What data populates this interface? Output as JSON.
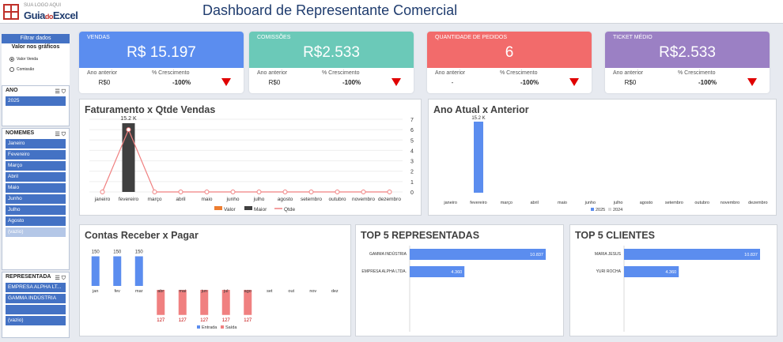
{
  "header": {
    "logo_small": "SUA LOGO AQUI",
    "logo_main": "Guia",
    "logo_do": "do",
    "logo_excel": "Excel",
    "title": "Dashboard de Representante Comercial"
  },
  "sidebar": {
    "filtrar": "Filtrar dados",
    "valor_nos_graficos": "Valor nos gráficos",
    "radio_valor": "Valor Venda",
    "radio_comissao": "Comissão",
    "ano": {
      "title": "ANO",
      "items": [
        "2025"
      ]
    },
    "nomemes": {
      "title": "NOMEMES",
      "items": [
        "Janeiro",
        "Fevereiro",
        "Março",
        "Abril",
        "Maio",
        "Junho",
        "Julho",
        "Agosto"
      ],
      "empty": "(vazio)"
    },
    "representada": {
      "title": "REPRESENTADA",
      "items": [
        "EMPRESA ALPHA LT...",
        "GAMMA INDÚSTRIA"
      ],
      "empty": "(vazio)"
    }
  },
  "kpis": [
    {
      "label": "VENDAS",
      "value": "R$ 15.197",
      "prev_label": "Ano anterior",
      "prev_value": "R$0",
      "growth_label": "% Crescimento",
      "growth_value": "-100%",
      "color": "#5b8def"
    },
    {
      "label": "COMISSÕES",
      "value": "R$2.533",
      "prev_label": "Ano anterior",
      "prev_value": "R$0",
      "growth_label": "% Crescimento",
      "growth_value": "-100%",
      "color": "#6bc9b8"
    },
    {
      "label": "QUANTIDADE DE PEDIDOS",
      "value": "6",
      "prev_label": "Ano anterior",
      "prev_value": "-",
      "growth_label": "% Crescimento",
      "growth_value": "-100%",
      "color": "#f26b6b"
    },
    {
      "label": "TICKET MÉDIO",
      "value": "R$2.533",
      "prev_label": "Ano anterior",
      "prev_value": "R$0",
      "growth_label": "% Crescimento",
      "growth_value": "-100%",
      "color": "#9b80c4"
    }
  ],
  "charts": {
    "faturamento_title": "Faturamento x Qtde Vendas",
    "ano_title": "Ano Atual x Anterior",
    "contas_title": "Contas Receber x Pagar",
    "top5r_title": "TOP 5 REPRESENTADAS",
    "top5c_title": "TOP 5 CLIENTES"
  },
  "chart_data": [
    {
      "type": "bar",
      "id": "faturamento",
      "categories": [
        "janeiro",
        "fevereiro",
        "março",
        "abril",
        "maio",
        "junho",
        "julho",
        "agosto",
        "setembro",
        "outubro",
        "novembro",
        "dezembro"
      ],
      "series": [
        {
          "name": "Maior",
          "values": [
            0,
            15197,
            0,
            0,
            0,
            0,
            0,
            0,
            0,
            0,
            0,
            0
          ],
          "color": "#404040"
        },
        {
          "name": "Qtde",
          "type": "line",
          "values": [
            0,
            6,
            0,
            0,
            0,
            0,
            0,
            0,
            0,
            0,
            0,
            0
          ],
          "color": "#f08080",
          "axis": "secondary"
        }
      ],
      "legend": [
        "Valor",
        "Maior",
        "Qtde"
      ],
      "data_label": "15.2 K",
      "y2_ticks": [
        "0",
        "1",
        "2",
        "3",
        "4",
        "5",
        "6",
        "7"
      ],
      "legend_position": "bottom"
    },
    {
      "type": "bar",
      "id": "ano_atual",
      "categories": [
        "janeiro",
        "fevereiro",
        "março",
        "abril",
        "maio",
        "junho",
        "julho",
        "agosto",
        "setembro",
        "outubro",
        "novembro",
        "dezembro"
      ],
      "series": [
        {
          "name": "2025",
          "values": [
            0,
            15197,
            0,
            0,
            0,
            0,
            0,
            0,
            0,
            0,
            0,
            0
          ],
          "color": "#5b8def"
        },
        {
          "name": "2024",
          "values": [
            0,
            0,
            0,
            0,
            0,
            0,
            0,
            0,
            0,
            0,
            0,
            0
          ],
          "color": "#d9d9d9"
        }
      ],
      "data_label": "15.2 K",
      "legend_position": "bottom"
    },
    {
      "type": "bar",
      "id": "contas",
      "categories": [
        "jan",
        "fev",
        "mar",
        "abr",
        "mai",
        "jun",
        "jul",
        "ago",
        "set",
        "out",
        "nov",
        "dez"
      ],
      "series": [
        {
          "name": "Entrada",
          "values": [
            150,
            150,
            150,
            0,
            0,
            0,
            0,
            0,
            0,
            0,
            0,
            0
          ],
          "color": "#5b8def"
        },
        {
          "name": "Saída",
          "values": [
            0,
            0,
            0,
            -127,
            -127,
            -127,
            -127,
            -127,
            0,
            0,
            0,
            0
          ],
          "color": "#f08080"
        }
      ],
      "legend_position": "bottom"
    },
    {
      "type": "bar",
      "id": "top5_representadas",
      "categories": [
        "GAMMA INDÚSTRIA",
        "EMPRESA ALPHA LTDA."
      ],
      "values": [
        10837,
        4360
      ],
      "labels": [
        "10.837",
        "4.360"
      ],
      "color": "#5b8def"
    },
    {
      "type": "bar",
      "id": "top5_clientes",
      "categories": [
        "MARIA JESUS",
        "YURI ROCHA"
      ],
      "values": [
        10837,
        4360
      ],
      "labels": [
        "10.837",
        "4.360"
      ],
      "color": "#5b8def"
    }
  ]
}
